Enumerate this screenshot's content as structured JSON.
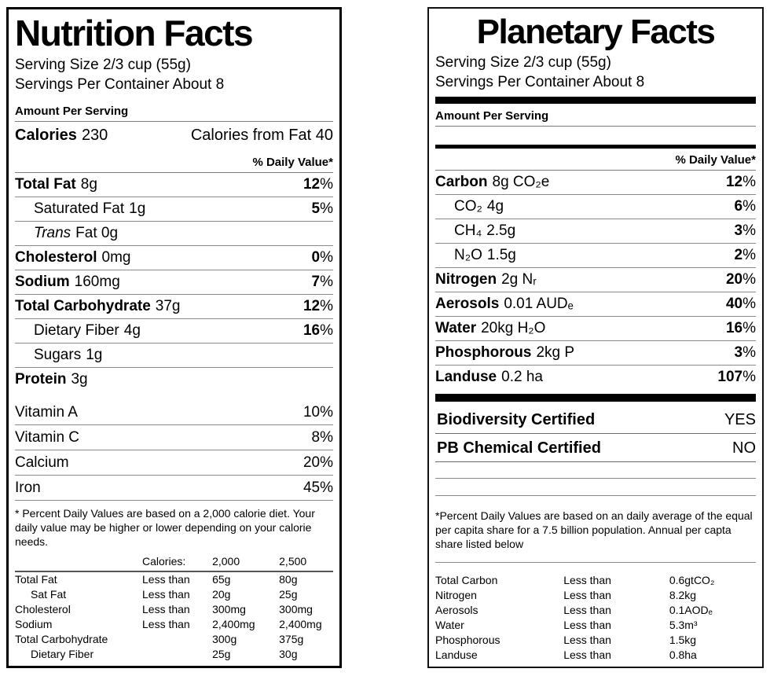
{
  "shared": {
    "percent": "%"
  },
  "left_label": {
    "title": "Nutrition Facts",
    "serving_size": "Serving Size 2/3 cup (55g)",
    "servings_per_container": "Servings Per Container About 8",
    "amount_per_serving": "Amount Per Serving",
    "calories_label": "Calories",
    "calories_value": "230",
    "calories_from_fat": "Calories from Fat 40",
    "daily_value_header": "% Daily Value*",
    "nutrient_rows": [
      {
        "name": "Total Fat",
        "amount": "8g",
        "pct": "12"
      },
      {
        "name": "Saturated Fat",
        "amount": "1g",
        "pct": "5"
      },
      {
        "name": "Trans",
        "amount": "Fat 0g",
        "pct": ""
      },
      {
        "name": "Cholesterol",
        "amount": "0mg",
        "pct": "0"
      },
      {
        "name": "Sodium",
        "amount": "160mg",
        "pct": "7"
      },
      {
        "name": "Total Carbohydrate",
        "amount": "37g",
        "pct": "12"
      },
      {
        "name": "Dietary Fiber",
        "amount": "4g",
        "pct": "16"
      },
      {
        "name": "Sugars",
        "amount": "1g",
        "pct": ""
      },
      {
        "name": "Protein",
        "amount": "3g",
        "pct": ""
      }
    ],
    "vitamin_rows": [
      {
        "name": "Vitamin A",
        "pct": "10%"
      },
      {
        "name": "Vitamin C",
        "pct": "8%"
      },
      {
        "name": "Calcium",
        "pct": "20%"
      },
      {
        "name": "Iron",
        "pct": "45%"
      }
    ],
    "footnote": "* Percent Daily Values are based on a 2,000 calorie diet. Your daily value may be higher or lower depending on your calorie needs.",
    "reference_table": {
      "col_calories": "Calories:",
      "col_2000": "2,000",
      "col_2500": "2,500",
      "rows": [
        {
          "name": "Total Fat",
          "qualifier": "Less than",
          "v2000": "65g",
          "v2500": "80g"
        },
        {
          "name": "Sat Fat",
          "qualifier": "Less than",
          "v2000": "20g",
          "v2500": "25g"
        },
        {
          "name": "Cholesterol",
          "qualifier": "Less than",
          "v2000": "300mg",
          "v2500": "300mg"
        },
        {
          "name": "Sodium",
          "qualifier": "Less than",
          "v2000": "2,400mg",
          "v2500": "2,400mg"
        },
        {
          "name": "Total Carbohydrate",
          "qualifier": "",
          "v2000": "300g",
          "v2500": "375g"
        },
        {
          "name": "Dietary Fiber",
          "qualifier": "",
          "v2000": "25g",
          "v2500": "30g"
        }
      ]
    }
  },
  "right_label": {
    "title": "Planetary Facts",
    "serving_size": "Serving Size 2/3 cup (55g)",
    "servings_per_container": "Servings Per Container About 8",
    "amount_per_serving": "Amount Per Serving",
    "daily_value_header": "% Daily Value*",
    "nutrient_rows": [
      {
        "name": "Carbon",
        "amount": "8g CO₂e",
        "pct": "12"
      },
      {
        "name": "CO₂",
        "amount": "4g",
        "pct": "6"
      },
      {
        "name": "CH₄",
        "amount": "2.5g",
        "pct": "3"
      },
      {
        "name": "N₂O",
        "amount": "1.5g",
        "pct": "2"
      },
      {
        "name": "Nitrogen",
        "amount": "2g Nᵣ",
        "pct": "20"
      },
      {
        "name": "Aerosols",
        "amount": "0.01 AUDₑ",
        "pct": "40"
      },
      {
        "name": "Water",
        "amount": "20kg H₂O",
        "pct": "16"
      },
      {
        "name": "Phosphorous",
        "amount": "2kg P",
        "pct": "3"
      },
      {
        "name": "Landuse",
        "amount": "0.2 ha",
        "pct": "107"
      }
    ],
    "certified_rows": [
      {
        "name": "Biodiversity Certified",
        "value": "YES"
      },
      {
        "name": "PB Chemical Certified",
        "value": "NO"
      }
    ],
    "footnote": "*Percent Daily Values are based on an daily average of the equal per capita share for a 7.5 billion population. Annual per capta share listed below",
    "reference_table": {
      "rows": [
        {
          "name": "Total Carbon",
          "qualifier": "Less than",
          "value": "0.6gtCO₂"
        },
        {
          "name": "Nitrogen",
          "qualifier": "Less than",
          "value": "8.2kg"
        },
        {
          "name": "Aerosols",
          "qualifier": "Less than",
          "value": "0.1AODₑ"
        },
        {
          "name": "Water",
          "qualifier": "Less than",
          "value": "5.3m³"
        },
        {
          "name": "Phosphorous",
          "qualifier": "Less than",
          "value": "1.5kg"
        },
        {
          "name": "Landuse",
          "qualifier": "Less than",
          "value": "0.8ha"
        }
      ]
    }
  }
}
